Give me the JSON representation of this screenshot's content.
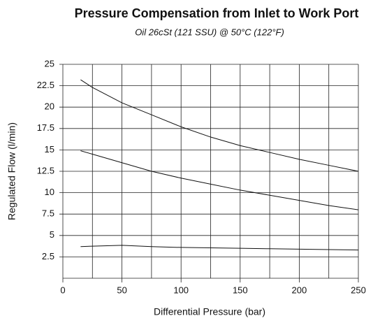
{
  "chart_data": {
    "type": "line",
    "title": "Pressure Compensation from Inlet to Work Port",
    "subtitle": "Oil 26cSt (121 SSU) @ 50°C (122°F)",
    "x_label": "Differential Pressure (bar)",
    "y_label": "Regulated Flow (l/min)",
    "x": [
      15,
      25,
      50,
      75,
      100,
      125,
      150,
      175,
      200,
      225,
      250
    ],
    "series": [
      {
        "color": "#111111",
        "values": [
          23.2,
          22.3,
          20.5,
          19.1,
          17.7,
          16.5,
          15.5,
          14.7,
          13.9,
          13.2,
          12.5
        ]
      },
      {
        "color": "#111111",
        "values": [
          14.9,
          14.5,
          13.5,
          12.5,
          11.7,
          11.0,
          10.3,
          9.7,
          9.1,
          8.5,
          8.0
        ]
      },
      {
        "color": "#111111",
        "values": [
          3.7,
          3.75,
          3.85,
          3.7,
          3.6,
          3.55,
          3.5,
          3.45,
          3.4,
          3.35,
          3.3
        ]
      }
    ],
    "xlim": [
      0,
      250
    ],
    "ylim": [
      0,
      25
    ],
    "xticks": [
      0,
      50,
      100,
      150,
      200,
      250
    ],
    "xminor": [
      25,
      75,
      125,
      175,
      225
    ],
    "yticks": [
      2.5,
      5,
      7.5,
      10,
      12.5,
      15,
      17.5,
      20,
      22.5,
      25
    ],
    "grid": true
  }
}
